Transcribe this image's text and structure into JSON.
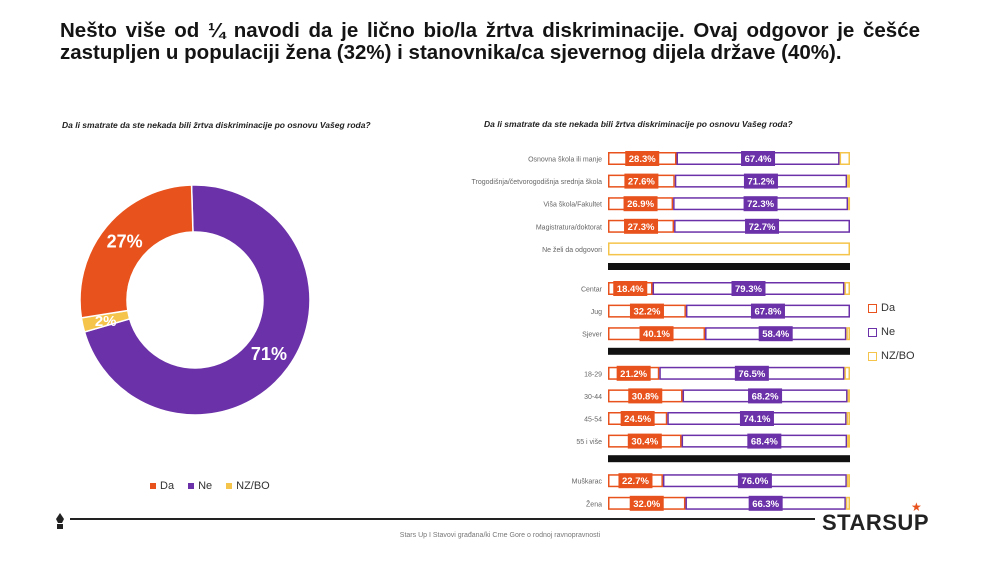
{
  "headline": "Nešto više od ¼ navodi da je lično bio/la žrtva diskriminacije. Ovaj odgovor je češće zastupljen u populaciji žena (32%) i stanovnika/ca sjevernog dijela države (40%).",
  "footer": "Stars Up I Stavovi građana/ki Crne Gore o rodnoj ravnopravnosti",
  "logo": "STARSUP",
  "colors": {
    "da": "#e8521c",
    "ne": "#6b31a8",
    "nzbo": "#f5c44a"
  },
  "chart_data": [
    {
      "type": "pie",
      "variant": "donut",
      "title": "Da li smatrate da ste nekada bili žrtva diskriminacije po osnovu Vašeg roda?",
      "slices": [
        {
          "name": "Da",
          "value": 27,
          "label": "27%",
          "color": "#e8521c"
        },
        {
          "name": "Ne",
          "value": 71,
          "label": "71%",
          "color": "#6b31a8"
        },
        {
          "name": "NZ/BO",
          "value": 2,
          "label": "2%",
          "color": "#f5c44a"
        }
      ],
      "legend": [
        "Da",
        "Ne",
        "NZ/BO"
      ],
      "legend_position": "bottom"
    },
    {
      "type": "bar",
      "orientation": "horizontal",
      "stacked": true,
      "title": "Da li smatrate da ste nekada bili žrtva diskriminacije po osnovu Vašeg roda?",
      "series_names": [
        "Da",
        "Ne",
        "NZ/BO"
      ],
      "legend": [
        "Da",
        "Ne",
        "NZ/BO"
      ],
      "legend_position": "right",
      "groups": [
        {
          "rows": [
            {
              "category": "Osnovna škola ili manje",
              "da": 28.3,
              "ne": 67.4,
              "nzbo": 4.3,
              "da_label": "28.3%",
              "ne_label": "67.4%"
            },
            {
              "category": "Trogodišnja/četvorogodišnja srednja škola",
              "da": 27.6,
              "ne": 71.2,
              "nzbo": 1.2,
              "da_label": "27.6%",
              "ne_label": "71.2%"
            },
            {
              "category": "Viša škola/Fakultet",
              "da": 26.9,
              "ne": 72.3,
              "nzbo": 0.8,
              "da_label": "26.9%",
              "ne_label": "72.3%"
            },
            {
              "category": "Magistratura/doktorat",
              "da": 27.3,
              "ne": 72.7,
              "nzbo": 0.0,
              "da_label": "27.3%",
              "ne_label": "72.7%"
            },
            {
              "category": "Ne želi da odgovori",
              "da": 0,
              "ne": 0,
              "nzbo": 100,
              "da_label": "",
              "ne_label": ""
            }
          ]
        },
        {
          "rows": [
            {
              "category": "Centar",
              "da": 18.4,
              "ne": 79.3,
              "nzbo": 2.3,
              "da_label": "18.4%",
              "ne_label": "79.3%"
            },
            {
              "category": "Jug",
              "da": 32.2,
              "ne": 67.8,
              "nzbo": 0.0,
              "da_label": "32.2%",
              "ne_label": "67.8%"
            },
            {
              "category": "Sjever",
              "da": 40.1,
              "ne": 58.4,
              "nzbo": 1.5,
              "da_label": "40.1%",
              "ne_label": "58.4%"
            }
          ]
        },
        {
          "rows": [
            {
              "category": "18-29",
              "da": 21.2,
              "ne": 76.5,
              "nzbo": 2.3,
              "da_label": "21.2%",
              "ne_label": "76.5%"
            },
            {
              "category": "30-44",
              "da": 30.8,
              "ne": 68.2,
              "nzbo": 1.0,
              "da_label": "30.8%",
              "ne_label": "68.2%"
            },
            {
              "category": "45-54",
              "da": 24.5,
              "ne": 74.1,
              "nzbo": 1.4,
              "da_label": "24.5%",
              "ne_label": "74.1%"
            },
            {
              "category": "55 i više",
              "da": 30.4,
              "ne": 68.4,
              "nzbo": 1.2,
              "da_label": "30.4%",
              "ne_label": "68.4%"
            }
          ]
        },
        {
          "rows": [
            {
              "category": "Muškarac",
              "da": 22.7,
              "ne": 76.0,
              "nzbo": 1.3,
              "da_label": "22.7%",
              "ne_label": "76.0%"
            },
            {
              "category": "Žena",
              "da": 32.0,
              "ne": 66.3,
              "nzbo": 1.7,
              "da_label": "32.0%",
              "ne_label": "66.3%"
            }
          ]
        }
      ],
      "xlim": [
        0,
        100
      ]
    }
  ]
}
